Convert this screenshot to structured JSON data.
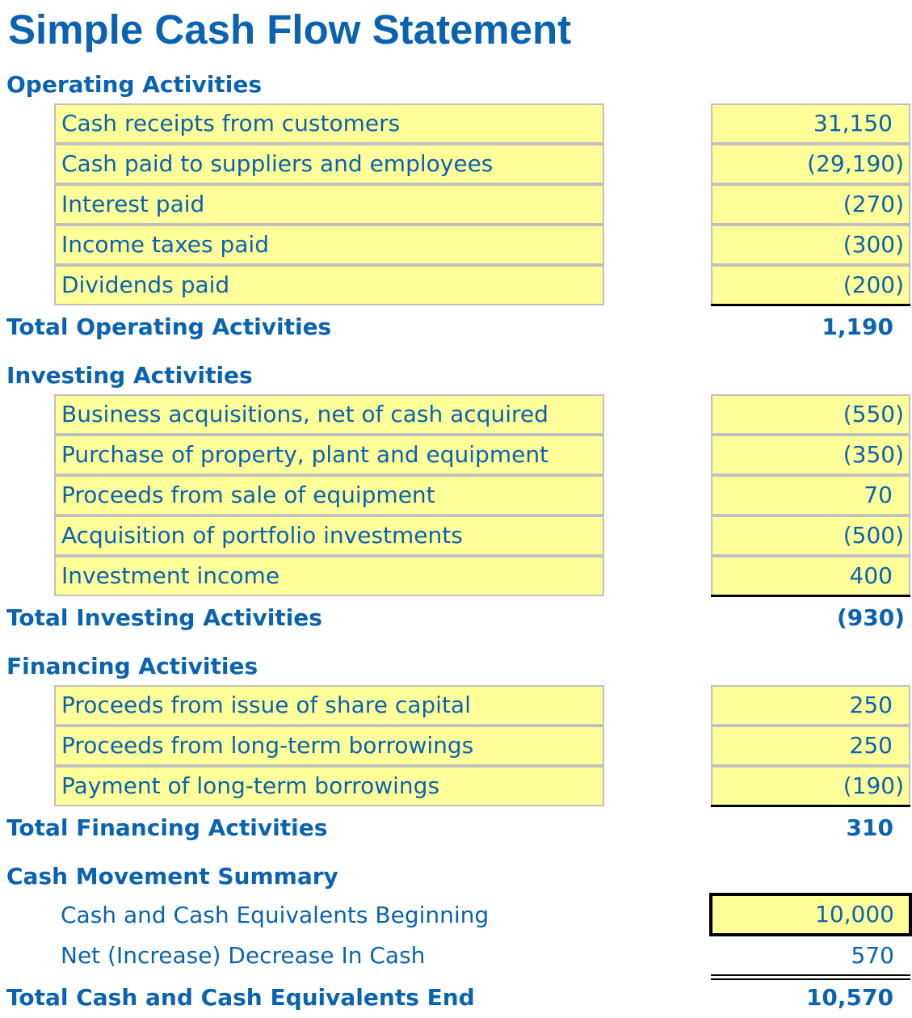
{
  "title": "Simple Cash Flow Statement",
  "operating": {
    "heading": "Operating Activities",
    "rows": [
      {
        "label": "Cash receipts from customers",
        "value": "31,150"
      },
      {
        "label": "Cash paid to suppliers and employees",
        "value": "(29,190)"
      },
      {
        "label": "Interest paid",
        "value": "(270)"
      },
      {
        "label": "Income taxes paid",
        "value": "(300)"
      },
      {
        "label": "Dividends paid",
        "value": "(200)"
      }
    ],
    "total_label": "Total Operating Activities",
    "total_value": "1,190"
  },
  "investing": {
    "heading": "Investing Activities",
    "rows": [
      {
        "label": "Business acquisitions, net of cash acquired",
        "value": "(550)"
      },
      {
        "label": "Purchase of property, plant and equipment",
        "value": "(350)"
      },
      {
        "label": "Proceeds from sale of equipment",
        "value": "70"
      },
      {
        "label": "Acquisition of portfolio investments",
        "value": "(500)"
      },
      {
        "label": "Investment income",
        "value": "400"
      }
    ],
    "total_label": "Total Investing Activities",
    "total_value": "(930)"
  },
  "financing": {
    "heading": "Financing Activities",
    "rows": [
      {
        "label": "Proceeds from issue of share capital",
        "value": "250"
      },
      {
        "label": "Proceeds from long-term borrowings",
        "value": "250"
      },
      {
        "label": "Payment of long-term borrowings",
        "value": "(190)"
      }
    ],
    "total_label": "Total Financing Activities",
    "total_value": "310"
  },
  "summary": {
    "heading": "Cash Movement Summary",
    "beginning_label": "Cash and Cash Equivalents Beginning",
    "beginning_value": "10,000",
    "net_label": "Net (Increase) Decrease In Cash",
    "net_value": "570",
    "total_label": "Total Cash and Cash Equivalents End",
    "total_value": "10,570"
  },
  "colors": {
    "text": "#0a63b0",
    "input_fill": "#ffff99",
    "cell_border": "#c0c0c0"
  }
}
